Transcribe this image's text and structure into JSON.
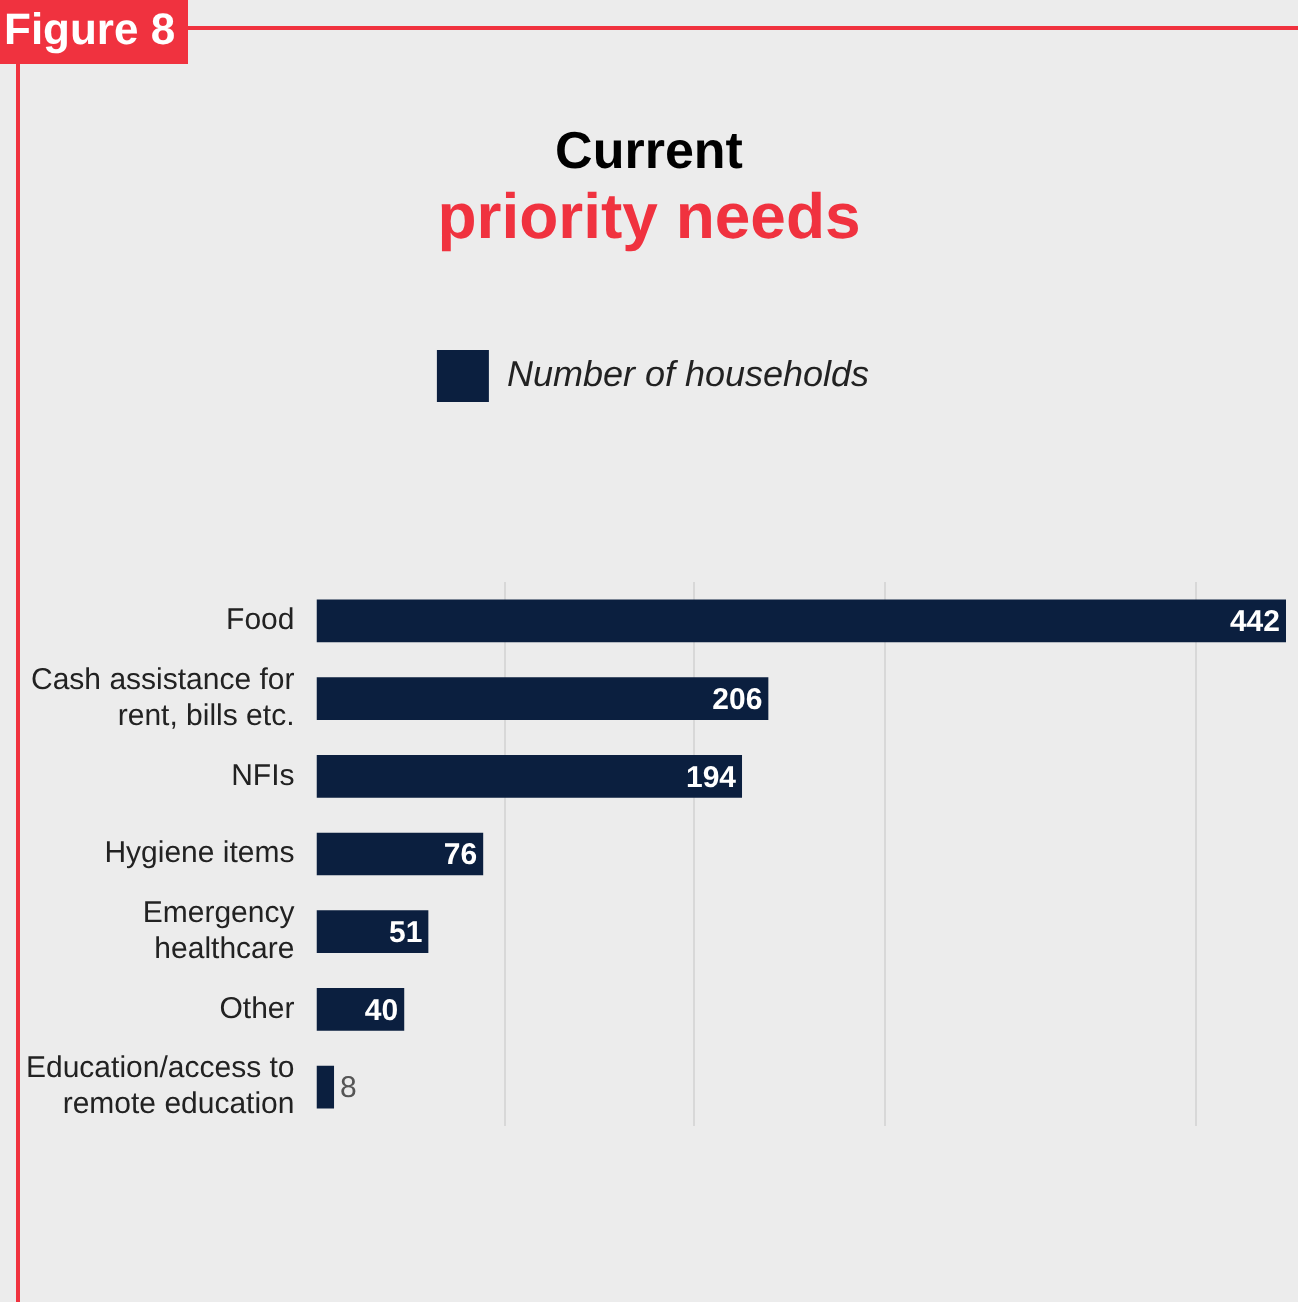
{
  "chart_data": {
    "type": "bar",
    "orientation": "horizontal",
    "title": "Current",
    "subtitle": "priority needs",
    "annotations": [
      "Figure 8"
    ],
    "categories": [
      "Food",
      "Cash assistance for rent, bills etc.",
      "NFIs",
      "Hygiene items",
      "Emergency healthcare",
      "Other",
      "Education/access to remote education"
    ],
    "series": [
      {
        "name": "Number of households",
        "color": "#0b1f3f",
        "values": [
          442,
          206,
          194,
          76,
          51,
          40,
          8
        ]
      }
    ],
    "xlim": [
      0,
      442
    ],
    "xticks": [
      {
        "value": 86,
        "label": null
      },
      {
        "value": 172,
        "label": null
      },
      {
        "value": 259,
        "label": null
      },
      {
        "value": 401,
        "label": null
      }
    ],
    "tick_labels": "y",
    "grid": "x",
    "legend": "top",
    "data_labels": true
  }
}
